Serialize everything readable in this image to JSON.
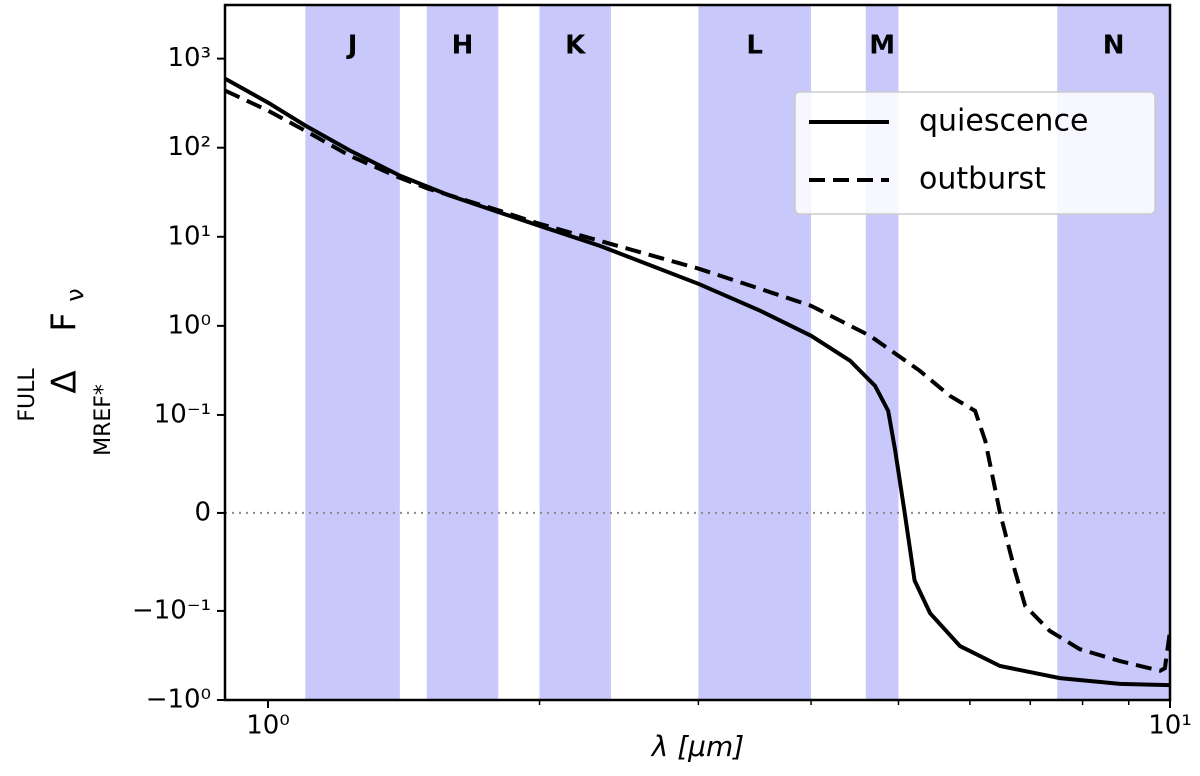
{
  "chart_data": {
    "type": "line",
    "xlabel": "λ [μm]",
    "ylabel_parts": {
      "sup": "FULL",
      "symbol": "Δ",
      "sub": "MREF*",
      "quantity": "F",
      "quantity_sub": "ν"
    },
    "xscale": "log",
    "yscale": "symlog",
    "linthresh": 0.1,
    "linscale": 1.1,
    "xlim": [
      0.896,
      10
    ],
    "ylim": [
      -1,
      4000
    ],
    "xticks": [
      {
        "value": 1,
        "label": "10⁰"
      },
      {
        "value": 10,
        "label": "10¹"
      }
    ],
    "xminorticks": [
      2,
      3,
      4,
      5,
      6,
      7,
      8,
      9
    ],
    "yticks": [
      {
        "value": 1000,
        "label": "10³"
      },
      {
        "value": 100,
        "label": "10²"
      },
      {
        "value": 10,
        "label": "10¹"
      },
      {
        "value": 1,
        "label": "10⁰"
      },
      {
        "value": 0.1,
        "label": "10⁻¹"
      },
      0,
      {
        "value": -0.1,
        "label": "−10⁻¹"
      },
      {
        "value": -1,
        "label": "−10⁰"
      }
    ],
    "hline": 0,
    "band_color": "#c8c8fa",
    "bands": [
      {
        "name": "J",
        "range": [
          1.1,
          1.4
        ]
      },
      {
        "name": "H",
        "range": [
          1.5,
          1.8
        ]
      },
      {
        "name": "K",
        "range": [
          2.0,
          2.4
        ]
      },
      {
        "name": "L",
        "range": [
          3.0,
          4.0
        ]
      },
      {
        "name": "M",
        "range": [
          4.6,
          5.0
        ]
      },
      {
        "name": "N",
        "range": [
          7.5,
          13
        ]
      }
    ],
    "legend": "upper right",
    "series": [
      {
        "name": "quiescence",
        "color": "#000000",
        "dash": "solid",
        "x": [
          0.896,
          1.0,
          1.1,
          1.233,
          1.4,
          1.591,
          1.808,
          2.0,
          2.334,
          3.0,
          3.512,
          4.0,
          4.42,
          4.71,
          4.87,
          4.96,
          5.08,
          5.21,
          5.42,
          5.85,
          6.48,
          7.55,
          8.8,
          10
        ],
        "values": [
          597,
          321,
          177,
          92.7,
          48.6,
          29,
          18.7,
          13.3,
          7.9,
          2.97,
          1.48,
          0.774,
          0.405,
          0.212,
          0.111,
          0.063,
          0,
          -0.069,
          -0.106,
          -0.248,
          -0.415,
          -0.568,
          -0.66,
          -0.68
        ]
      },
      {
        "name": "outburst",
        "color": "#000000",
        "dash": "dashed",
        "x": [
          0.896,
          1.0,
          1.1,
          1.233,
          1.4,
          1.505,
          1.808,
          2.0,
          2.334,
          3.0,
          3.512,
          4.0,
          4.65,
          5.28,
          5.7,
          6.08,
          6.24,
          6.48,
          6.73,
          6.91,
          7.36,
          7.94,
          8.8,
          9.75,
          9.87,
          10
        ],
        "values": [
          438,
          261,
          155,
          81,
          46,
          34.7,
          19.6,
          14,
          9.0,
          4.39,
          2.61,
          1.68,
          0.774,
          0.313,
          0.164,
          0.111,
          0.0735,
          0,
          -0.059,
          -0.095,
          -0.168,
          -0.268,
          -0.366,
          -0.47,
          -0.44,
          -0.168
        ]
      }
    ]
  }
}
